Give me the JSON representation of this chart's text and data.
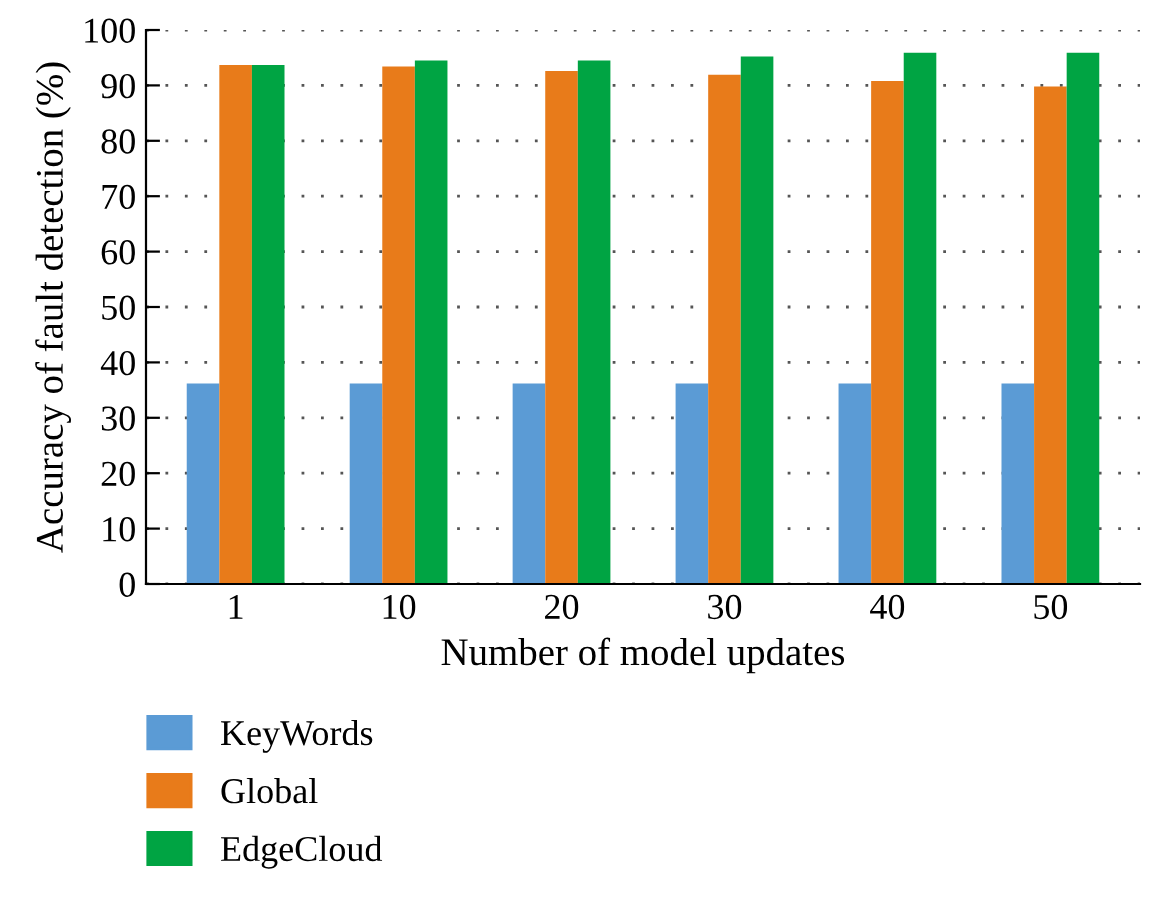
{
  "chart_data": {
    "type": "bar",
    "xlabel": "Number of model updates",
    "ylabel": "Accuracy of fault detection (%)",
    "categories": [
      "1",
      "10",
      "20",
      "30",
      "40",
      "50"
    ],
    "series": [
      {
        "name": "KeyWords",
        "color": "#5b9bd5",
        "values": [
          36.2,
          36.2,
          36.2,
          36.2,
          36.2,
          36.2
        ]
      },
      {
        "name": "Global",
        "color": "#e87b1a",
        "values": [
          93.7,
          93.4,
          92.6,
          91.9,
          90.8,
          89.8
        ]
      },
      {
        "name": "EdgeCloud",
        "color": "#00a443",
        "values": [
          93.7,
          94.5,
          94.5,
          95.2,
          95.9,
          95.9
        ]
      }
    ],
    "ylim": [
      0,
      100
    ],
    "yticks": [
      0,
      10,
      20,
      30,
      40,
      50,
      60,
      70,
      80,
      90,
      100
    ],
    "grid": "y",
    "legend": "bottom left"
  }
}
